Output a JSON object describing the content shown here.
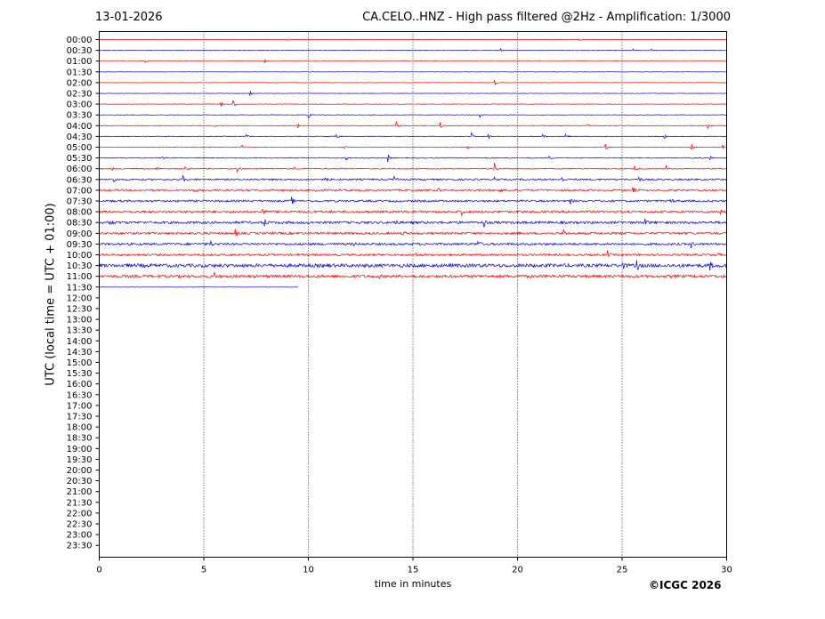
{
  "header": {
    "date": "13-01-2026",
    "title": "CA.CELO..HNZ - High pass filtered @2Hz - Amplification: 1/3000"
  },
  "credit": "©ICGC 2026",
  "chart_data": {
    "type": "line",
    "title": "CA.CELO..HNZ - High pass filtered @2Hz - Amplification: 1/3000",
    "xlabel": "time in minutes",
    "ylabel": "UTC (local time = UTC + 01:00)",
    "xlim": [
      0,
      30
    ],
    "xticks": [
      0,
      5,
      10,
      15,
      20,
      25,
      30
    ],
    "vertical_gridlines": [
      5,
      10,
      15,
      20,
      25
    ],
    "grid_style": "dotted",
    "row_labels": [
      "00:00",
      "00:30",
      "01:00",
      "01:30",
      "02:00",
      "02:30",
      "03:00",
      "03:30",
      "04:00",
      "04:30",
      "05:00",
      "05:30",
      "06:00",
      "06:30",
      "07:00",
      "07:30",
      "08:00",
      "08:30",
      "09:00",
      "09:30",
      "10:00",
      "10:30",
      "11:00",
      "11:30",
      "12:00",
      "12:30",
      "13:00",
      "13:30",
      "14:00",
      "14:30",
      "15:00",
      "15:30",
      "16:00",
      "16:30",
      "17:00",
      "17:30",
      "18:00",
      "18:30",
      "19:00",
      "19:30",
      "20:00",
      "20:30",
      "21:00",
      "21:30",
      "22:00",
      "22:30",
      "23:00",
      "23:30"
    ],
    "colors": {
      "even_rows": "#ff0000",
      "odd_rows": "#0000ff"
    },
    "traces": [
      {
        "row": "00:00",
        "end": 30,
        "noise": 0.02,
        "events": [
          {
            "t": 9.0,
            "a": 0.3
          },
          {
            "t": 23.0,
            "a": 0.2
          }
        ]
      },
      {
        "row": "00:30",
        "end": 30,
        "noise": 0.05,
        "events": [
          {
            "t": 19.2,
            "a": 0.5
          },
          {
            "t": 25.5,
            "a": 0.4
          },
          {
            "t": 26.4,
            "a": 0.3
          }
        ]
      },
      {
        "row": "01:00",
        "end": 30,
        "noise": 0.04,
        "events": [
          {
            "t": 2.2,
            "a": 0.3
          },
          {
            "t": 7.9,
            "a": 0.5
          }
        ]
      },
      {
        "row": "01:30",
        "end": 30,
        "noise": 0.04,
        "events": []
      },
      {
        "row": "02:00",
        "end": 30,
        "noise": 0.04,
        "events": [
          {
            "t": 18.9,
            "a": 0.7
          }
        ]
      },
      {
        "row": "02:30",
        "end": 30,
        "noise": 0.05,
        "events": [
          {
            "t": 7.2,
            "a": 0.9
          }
        ]
      },
      {
        "row": "03:00",
        "end": 30,
        "noise": 0.05,
        "events": [
          {
            "t": 5.8,
            "a": 0.8
          },
          {
            "t": 6.4,
            "a": 0.9
          }
        ]
      },
      {
        "row": "03:30",
        "end": 30,
        "noise": 0.06,
        "events": [
          {
            "t": 10.0,
            "a": 1.0
          },
          {
            "t": 18.2,
            "a": 0.7
          }
        ]
      },
      {
        "row": "04:00",
        "end": 30,
        "noise": 0.08,
        "events": [
          {
            "t": 5.4,
            "a": 0.8
          },
          {
            "t": 9.5,
            "a": 0.6
          },
          {
            "t": 14.2,
            "a": 0.9
          },
          {
            "t": 16.3,
            "a": 1.0
          },
          {
            "t": 23.3,
            "a": 0.5
          },
          {
            "t": 29.1,
            "a": 1.2
          }
        ]
      },
      {
        "row": "04:30",
        "end": 30,
        "noise": 0.08,
        "events": [
          {
            "t": 7.0,
            "a": 0.8
          },
          {
            "t": 11.3,
            "a": 1.0
          },
          {
            "t": 17.8,
            "a": 1.0
          },
          {
            "t": 18.6,
            "a": 0.8
          },
          {
            "t": 21.2,
            "a": 0.6
          },
          {
            "t": 22.3,
            "a": 0.9
          },
          {
            "t": 27.0,
            "a": 0.7
          }
        ]
      },
      {
        "row": "05:00",
        "end": 30,
        "noise": 0.08,
        "events": [
          {
            "t": 6.8,
            "a": 0.6
          },
          {
            "t": 11.7,
            "a": 0.7
          },
          {
            "t": 17.6,
            "a": 0.6
          },
          {
            "t": 24.2,
            "a": 0.8
          },
          {
            "t": 28.3,
            "a": 1.0
          },
          {
            "t": 29.8,
            "a": 0.9
          }
        ]
      },
      {
        "row": "05:30",
        "end": 30,
        "noise": 0.1,
        "events": [
          {
            "t": 3.0,
            "a": 0.6
          },
          {
            "t": 11.8,
            "a": 0.7
          },
          {
            "t": 13.8,
            "a": 1.0
          },
          {
            "t": 21.5,
            "a": 0.6
          },
          {
            "t": 29.2,
            "a": 0.6
          }
        ]
      },
      {
        "row": "06:00",
        "end": 30,
        "noise": 0.12,
        "events": [
          {
            "t": 0.6,
            "a": 0.6
          },
          {
            "t": 2.7,
            "a": 0.6
          },
          {
            "t": 4.1,
            "a": 0.6
          },
          {
            "t": 6.6,
            "a": 0.6
          },
          {
            "t": 9.3,
            "a": 0.7
          },
          {
            "t": 18.9,
            "a": 1.4
          },
          {
            "t": 25.6,
            "a": 0.7
          },
          {
            "t": 27.1,
            "a": 0.6
          }
        ]
      },
      {
        "row": "06:30",
        "end": 30,
        "noise": 0.18,
        "events": [
          {
            "t": 0.7,
            "a": 0.7
          },
          {
            "t": 4.0,
            "a": 0.8
          },
          {
            "t": 10.8,
            "a": 0.9
          },
          {
            "t": 14.1,
            "a": 0.9
          },
          {
            "t": 18.9,
            "a": 1.1
          },
          {
            "t": 22.1,
            "a": 0.9
          },
          {
            "t": 25.8,
            "a": 0.8
          }
        ]
      },
      {
        "row": "07:00",
        "end": 30,
        "noise": 0.2,
        "events": [
          {
            "t": 4.5,
            "a": 0.9
          },
          {
            "t": 10.3,
            "a": 0.8
          },
          {
            "t": 16.2,
            "a": 0.8
          },
          {
            "t": 19.1,
            "a": 0.9
          },
          {
            "t": 25.5,
            "a": 0.9
          }
        ]
      },
      {
        "row": "07:30",
        "end": 30,
        "noise": 0.22,
        "events": [
          {
            "t": 9.2,
            "a": 0.9
          },
          {
            "t": 22.5,
            "a": 0.9
          },
          {
            "t": 27.3,
            "a": 0.9
          }
        ]
      },
      {
        "row": "08:00",
        "end": 30,
        "noise": 0.25,
        "events": [
          {
            "t": 7.8,
            "a": 0.9
          },
          {
            "t": 17.3,
            "a": 0.9
          },
          {
            "t": 29.7,
            "a": 0.8
          }
        ]
      },
      {
        "row": "08:30",
        "end": 30,
        "noise": 0.28,
        "events": [
          {
            "t": 0.5,
            "a": 1.0
          },
          {
            "t": 7.9,
            "a": 1.1
          },
          {
            "t": 14.1,
            "a": 1.0
          },
          {
            "t": 18.4,
            "a": 1.0
          },
          {
            "t": 26.1,
            "a": 1.0
          }
        ]
      },
      {
        "row": "09:00",
        "end": 30,
        "noise": 0.25,
        "events": [
          {
            "t": 6.5,
            "a": 0.8
          },
          {
            "t": 14.5,
            "a": 0.8
          },
          {
            "t": 22.2,
            "a": 0.8
          }
        ]
      },
      {
        "row": "09:30",
        "end": 30,
        "noise": 0.25,
        "events": [
          {
            "t": 5.3,
            "a": 0.8
          },
          {
            "t": 12.1,
            "a": 0.7
          },
          {
            "t": 18.1,
            "a": 0.8
          },
          {
            "t": 28.3,
            "a": 0.7
          }
        ]
      },
      {
        "row": "10:00",
        "end": 30,
        "noise": 0.22,
        "events": [
          {
            "t": 15.1,
            "a": 0.8
          },
          {
            "t": 24.3,
            "a": 0.8
          },
          {
            "t": 29.5,
            "a": 0.7
          }
        ]
      },
      {
        "row": "10:30",
        "end": 30,
        "noise": 0.38,
        "events": [
          {
            "t": 25.0,
            "a": 0.9
          },
          {
            "t": 25.7,
            "a": 1.5
          },
          {
            "t": 29.2,
            "a": 1.0
          }
        ]
      },
      {
        "row": "11:00",
        "end": 30,
        "noise": 0.32,
        "events": [
          {
            "t": 5.5,
            "a": 0.6
          },
          {
            "t": 13.3,
            "a": 0.6
          }
        ]
      },
      {
        "row": "11:30",
        "end": 9.5,
        "noise": 0.04,
        "events": []
      }
    ]
  }
}
